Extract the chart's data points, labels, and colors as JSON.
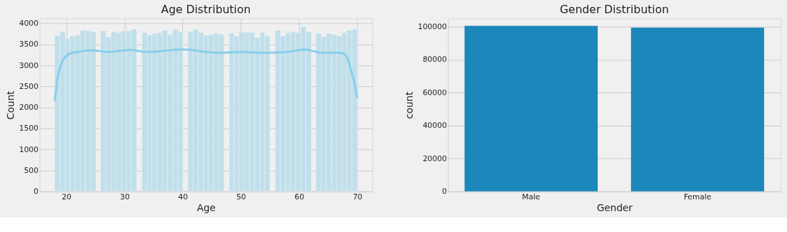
{
  "chart_data": [
    {
      "type": "histogram",
      "title": "Age Distribution",
      "xlabel": "Age",
      "ylabel": "Count",
      "bins": [
        18.0,
        18.9,
        19.8,
        20.6,
        21.5,
        22.4,
        23.3,
        24.2,
        25.1,
        25.9,
        26.8,
        27.7,
        28.6,
        29.5,
        30.3,
        31.2,
        32.1,
        33.0,
        33.9,
        34.7,
        35.6,
        36.5,
        37.4,
        38.3,
        39.2,
        40.0,
        40.9,
        41.8,
        42.7,
        43.6,
        44.4,
        45.3,
        46.2,
        47.1,
        48.0,
        48.8,
        49.7,
        50.6,
        51.5,
        52.4,
        53.3,
        54.1,
        55.0,
        55.9,
        56.8,
        57.7,
        58.5,
        59.4,
        60.3,
        61.2,
        62.1,
        62.9,
        63.8,
        64.7,
        65.6,
        66.5,
        67.4,
        68.2,
        69.1,
        70.0
      ],
      "series": [
        {
          "type": "histogram",
          "color": "#c0dfeb",
          "values": [
            3710,
            3800,
            3640,
            3700,
            3720,
            3840,
            3820,
            3800,
            0,
            3820,
            3680,
            3800,
            3780,
            3820,
            3820,
            3860,
            0,
            3780,
            3720,
            3760,
            3780,
            3840,
            3740,
            3860,
            3810,
            0,
            3810,
            3860,
            3790,
            3720,
            3730,
            3760,
            3740,
            0,
            3770,
            3700,
            3800,
            3790,
            3790,
            3670,
            3790,
            3700,
            0,
            3840,
            3700,
            3780,
            3800,
            3780,
            3920,
            3800,
            0,
            3760,
            3680,
            3760,
            3740,
            3700,
            3780,
            3840,
            3860
          ]
        },
        {
          "type": "line",
          "color": "#87ceeb",
          "x": [
            18,
            18.5,
            19,
            19.5,
            20,
            21,
            22,
            24,
            26,
            27,
            30,
            31,
            33,
            34,
            37,
            40,
            42,
            44,
            46,
            50,
            54,
            58,
            61,
            64,
            67,
            68,
            68.5,
            69,
            69.5,
            70
          ],
          "values": [
            2150,
            2680,
            2990,
            3140,
            3220,
            3300,
            3320,
            3360,
            3340,
            3320,
            3360,
            3370,
            3330,
            3320,
            3350,
            3380,
            3360,
            3320,
            3300,
            3320,
            3300,
            3320,
            3380,
            3300,
            3300,
            3250,
            3100,
            2860,
            2580,
            2220
          ]
        }
      ],
      "xlim": [
        15.4,
        72.6
      ],
      "xticks": [
        20,
        30,
        40,
        50,
        60,
        70
      ],
      "ylim": [
        0,
        4120
      ],
      "yticks": [
        0,
        500,
        1000,
        1500,
        2000,
        2500,
        3000,
        3500,
        4000
      ],
      "grid": true
    },
    {
      "type": "bar",
      "title": "Gender Distribution",
      "xlabel": "Gender",
      "ylabel": "count",
      "categories": [
        "Male",
        "Female"
      ],
      "values": [
        100400,
        99400
      ],
      "color": "#1b87bb",
      "ylim": [
        0,
        105000
      ],
      "yticks": [
        0,
        20000,
        40000,
        60000,
        80000,
        100000
      ],
      "grid": "y"
    }
  ]
}
